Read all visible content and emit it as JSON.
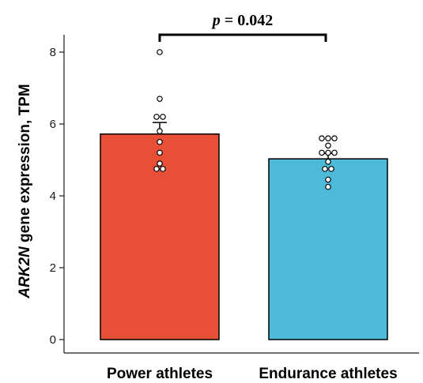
{
  "chart_data": {
    "type": "bar",
    "categories": [
      "Power athletes",
      "Endurance athletes"
    ],
    "values": [
      5.72,
      5.03
    ],
    "error": [
      0.32,
      0.15
    ],
    "points": [
      [
        8.0,
        6.7,
        6.2,
        6.2,
        5.8,
        5.5,
        5.2,
        4.9,
        4.75,
        4.75
      ],
      [
        5.6,
        5.6,
        5.6,
        5.4,
        5.2,
        5.2,
        5.2,
        4.95,
        4.75,
        4.75,
        4.45,
        4.25
      ]
    ],
    "colors": [
      "#e74f37",
      "#4dbad9"
    ],
    "ylabel_italic": "ARK2N",
    "ylabel_rest": " gene expression, TPM",
    "ylim": [
      0,
      8.5
    ],
    "yticks": [
      "0",
      "2",
      "4",
      "6",
      "8"
    ],
    "grid": false,
    "annotation": {
      "p_symbol": "p",
      "p_value_text": " = 0.042"
    }
  }
}
